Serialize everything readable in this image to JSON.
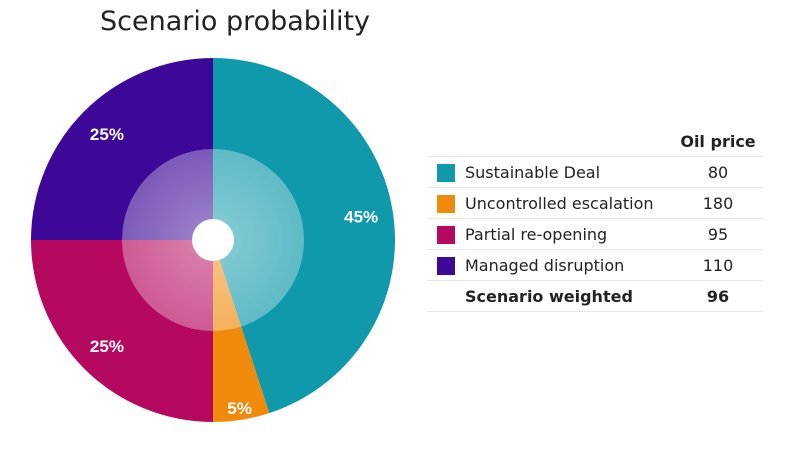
{
  "chart_data": {
    "type": "pie",
    "title": "Scenario probability",
    "slices": [
      {
        "name": "Sustainable Deal",
        "value": 45,
        "label": "45%",
        "color": "#0f99ab",
        "oil_price": "80"
      },
      {
        "name": "Uncontrolled escalation",
        "value": 5,
        "label": "5%",
        "color": "#f08a0c",
        "oil_price": "180"
      },
      {
        "name": "Partial re-opening",
        "value": 25,
        "label": "25%",
        "color": "#b5095f",
        "oil_price": "95"
      },
      {
        "name": "Managed disruption",
        "value": 25,
        "label": "25%",
        "color": "#3d0898",
        "oil_price": "110"
      }
    ],
    "table": {
      "header": "Oil price",
      "total_label": "Scenario weighted",
      "total_value": "96"
    }
  }
}
